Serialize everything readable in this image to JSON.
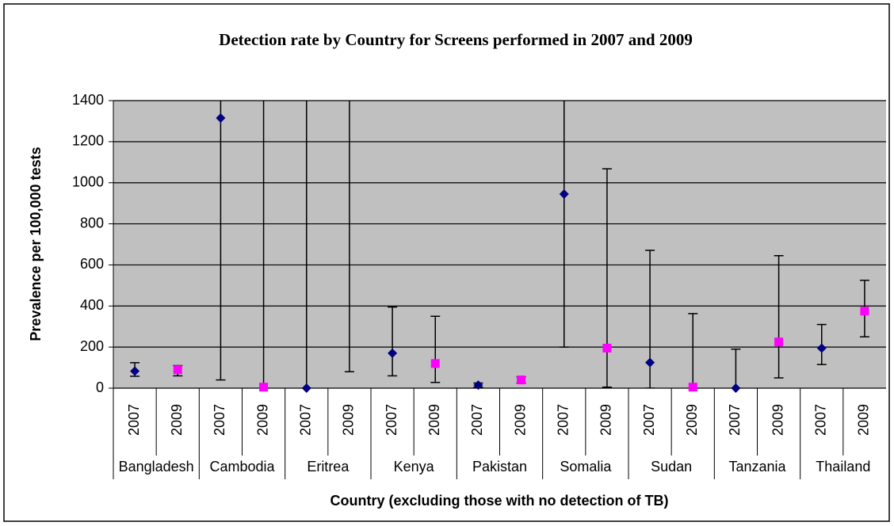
{
  "chart_data": {
    "type": "scatter",
    "title": "Detection rate by Country for Screens performed in 2007 and 2009",
    "x_label": "Country (excluding those with no detection of TB)",
    "y_label": "Prevalence per 100,000 tests",
    "categories": [
      "2007",
      "2009",
      "2007",
      "2009",
      "2007",
      "2009",
      "2007",
      "2009",
      "2007",
      "2009",
      "2007",
      "2009",
      "2007",
      "2009",
      "2007",
      "2009",
      "2007",
      "2009"
    ],
    "groups": [
      "Bangladesh",
      "Cambodia",
      "Eritrea",
      "Kenya",
      "Pakistan",
      "Somalia",
      "Sudan",
      "Tanzania",
      "Thailand"
    ],
    "series": [
      {
        "color": "#000080",
        "marker": "diamond",
        "values": [
          83,
          null,
          1315,
          null,
          0,
          null,
          170,
          null,
          15,
          null,
          945,
          null,
          125,
          null,
          0,
          null,
          195,
          null
        ],
        "lower": [
          58,
          null,
          40,
          null,
          0,
          null,
          60,
          null,
          5,
          null,
          200,
          null,
          0,
          null,
          0,
          null,
          115,
          null
        ],
        "upper": [
          124,
          null,
          1500,
          null,
          1500,
          null,
          395,
          null,
          25,
          null,
          1500,
          null,
          671,
          null,
          190,
          null,
          310,
          null
        ]
      },
      {
        "color": "#ff00ff",
        "marker": "square",
        "values": [
          null,
          90,
          null,
          5,
          null,
          null,
          null,
          120,
          null,
          40,
          null,
          195,
          null,
          5,
          null,
          225,
          null,
          375
        ],
        "lower": [
          null,
          60,
          null,
          0,
          null,
          80,
          null,
          28,
          null,
          25,
          null,
          5,
          null,
          0,
          null,
          50,
          null,
          250
        ],
        "upper": [
          null,
          110,
          null,
          1500,
          null,
          1500,
          null,
          350,
          null,
          55,
          null,
          1068,
          null,
          363,
          null,
          645,
          null,
          525
        ]
      }
    ],
    "ylim": [
      0,
      1400
    ],
    "yticks": [
      0,
      200,
      400,
      600,
      800,
      1000,
      1200,
      1400
    ],
    "grid": true,
    "plot_background": "#c0c0c0"
  }
}
